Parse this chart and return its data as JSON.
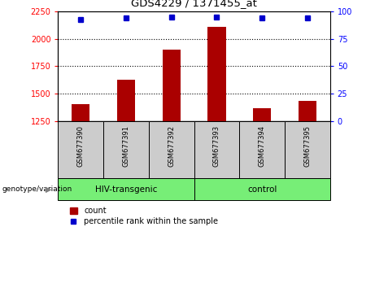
{
  "title": "GDS4229 / 1371455_at",
  "samples": [
    "GSM677390",
    "GSM677391",
    "GSM677392",
    "GSM677393",
    "GSM677394",
    "GSM677395"
  ],
  "bar_values": [
    1405,
    1630,
    1900,
    2110,
    1370,
    1430
  ],
  "bar_bottom": 1250,
  "percentile_values": [
    93,
    94,
    95,
    95,
    94,
    94
  ],
  "bar_color": "#aa0000",
  "dot_color": "#0000cc",
  "ylim_left": [
    1250,
    2250
  ],
  "ylim_right": [
    0,
    100
  ],
  "yticks_left": [
    1250,
    1500,
    1750,
    2000,
    2250
  ],
  "yticks_right": [
    0,
    25,
    50,
    75,
    100
  ],
  "groups": [
    {
      "label": "HIV-transgenic",
      "span": [
        0,
        3
      ]
    },
    {
      "label": "control",
      "span": [
        3,
        6
      ]
    }
  ],
  "group_label_prefix": "genotype/variation",
  "legend_count_label": "count",
  "legend_percentile_label": "percentile rank within the sample",
  "background_xticklabels": "#cccccc",
  "background_group": "#77ee77",
  "bar_width": 0.4
}
